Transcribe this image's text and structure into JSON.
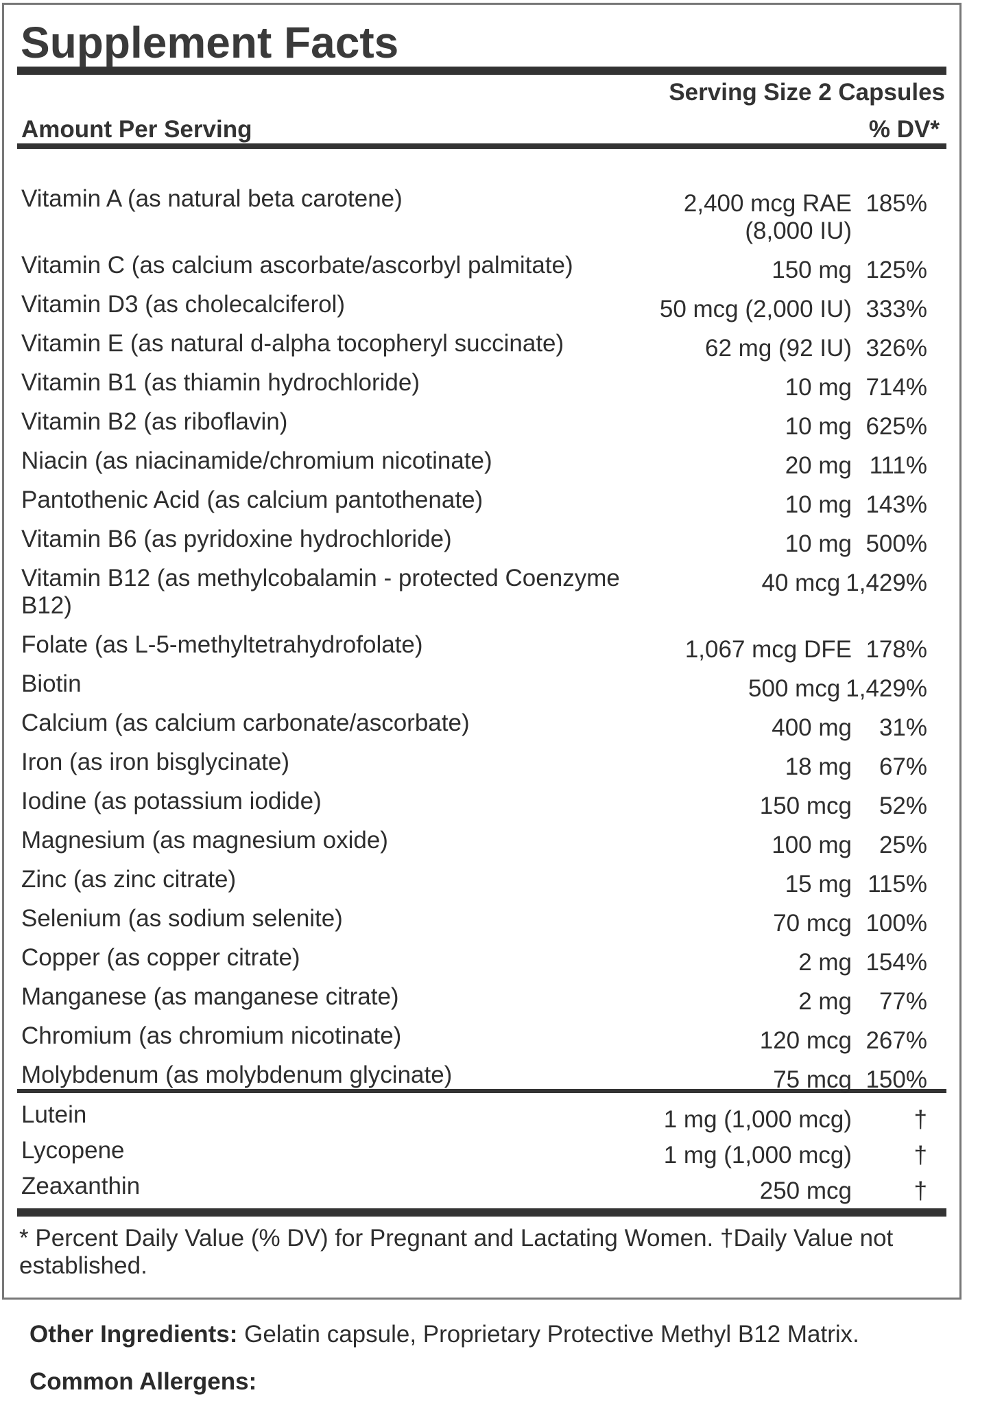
{
  "title": "Supplement Facts",
  "serving_size": "Serving Size 2 Capsules",
  "header": {
    "amount_label": "Amount Per Serving",
    "dv_label": "% DV*"
  },
  "nutrients": [
    {
      "name": "Vitamin A (as natural beta carotene)",
      "amount": "2,400 mcg RAE\n(8,000 IU)",
      "dv": "185%"
    },
    {
      "name": "Vitamin C (as calcium ascorbate/ascorbyl palmitate)",
      "amount": "150 mg",
      "dv": "125%"
    },
    {
      "name": "Vitamin D3 (as cholecalciferol)",
      "amount": "50 mcg (2,000 IU)",
      "dv": "333%"
    },
    {
      "name": "Vitamin E (as natural d-alpha tocopheryl succinate)",
      "amount": "62 mg (92 IU)",
      "dv": "326%"
    },
    {
      "name": "Vitamin B1 (as thiamin hydrochloride)",
      "amount": "10 mg",
      "dv": "714%"
    },
    {
      "name": "Vitamin B2 (as riboflavin)",
      "amount": "10 mg",
      "dv": "625%"
    },
    {
      "name": "Niacin (as niacinamide/chromium nicotinate)",
      "amount": "20 mg",
      "dv": "111%"
    },
    {
      "name": "Pantothenic Acid (as calcium pantothenate)",
      "amount": "10 mg",
      "dv": "143%"
    },
    {
      "name": "Vitamin B6 (as pyridoxine hydrochloride)",
      "amount": "10 mg",
      "dv": "500%"
    },
    {
      "name": "Vitamin B12 (as methylcobalamin - protected Coenzyme\nB12)",
      "amount": "40 mcg",
      "dv": "1,429%"
    },
    {
      "name": "Folate (as L-5-methyltetrahydrofolate)",
      "amount": "1,067 mcg DFE",
      "dv": "178%"
    },
    {
      "name": "Biotin",
      "amount": "500 mcg",
      "dv": "1,429%"
    },
    {
      "name": "Calcium (as calcium carbonate/ascorbate)",
      "amount": "400 mg",
      "dv": "31%"
    },
    {
      "name": "Iron (as iron bisglycinate)",
      "amount": "18 mg",
      "dv": "67%"
    },
    {
      "name": "Iodine (as potassium iodide)",
      "amount": "150 mcg",
      "dv": "52%"
    },
    {
      "name": "Magnesium (as magnesium oxide)",
      "amount": "100 mg",
      "dv": "25%"
    },
    {
      "name": "Zinc (as zinc citrate)",
      "amount": "15 mg",
      "dv": "115%"
    },
    {
      "name": "Selenium (as sodium selenite)",
      "amount": "70 mcg",
      "dv": "100%"
    },
    {
      "name": "Copper (as copper citrate)",
      "amount": "2 mg",
      "dv": "154%"
    },
    {
      "name": "Manganese (as manganese citrate)",
      "amount": "2 mg",
      "dv": "77%"
    },
    {
      "name": "Chromium (as chromium nicotinate)",
      "amount": "120 mcg",
      "dv": "267%"
    },
    {
      "name": "Molybdenum (as molybdenum glycinate)",
      "amount": "75 mcg",
      "dv": "150%"
    }
  ],
  "botanicals": [
    {
      "name": "Lutein",
      "amount": "1 mg (1,000 mcg)",
      "dv": "†"
    },
    {
      "name": "Lycopene",
      "amount": "1 mg (1,000 mcg)",
      "dv": "†"
    },
    {
      "name": "Zeaxanthin",
      "amount": "250 mcg",
      "dv": "†"
    }
  ],
  "footnote": "* Percent Daily Value (% DV) for Pregnant and Lactating Women. †Daily Value not established.",
  "other_ingredients": {
    "label": "Other Ingredients:",
    "text": " Gelatin capsule, Proprietary Protective Methyl B12 Matrix."
  },
  "allergens": {
    "label": "Common Allergens:"
  },
  "colors": {
    "text": "#2e2e2e",
    "bar": "#333333",
    "border": "#777777"
  }
}
